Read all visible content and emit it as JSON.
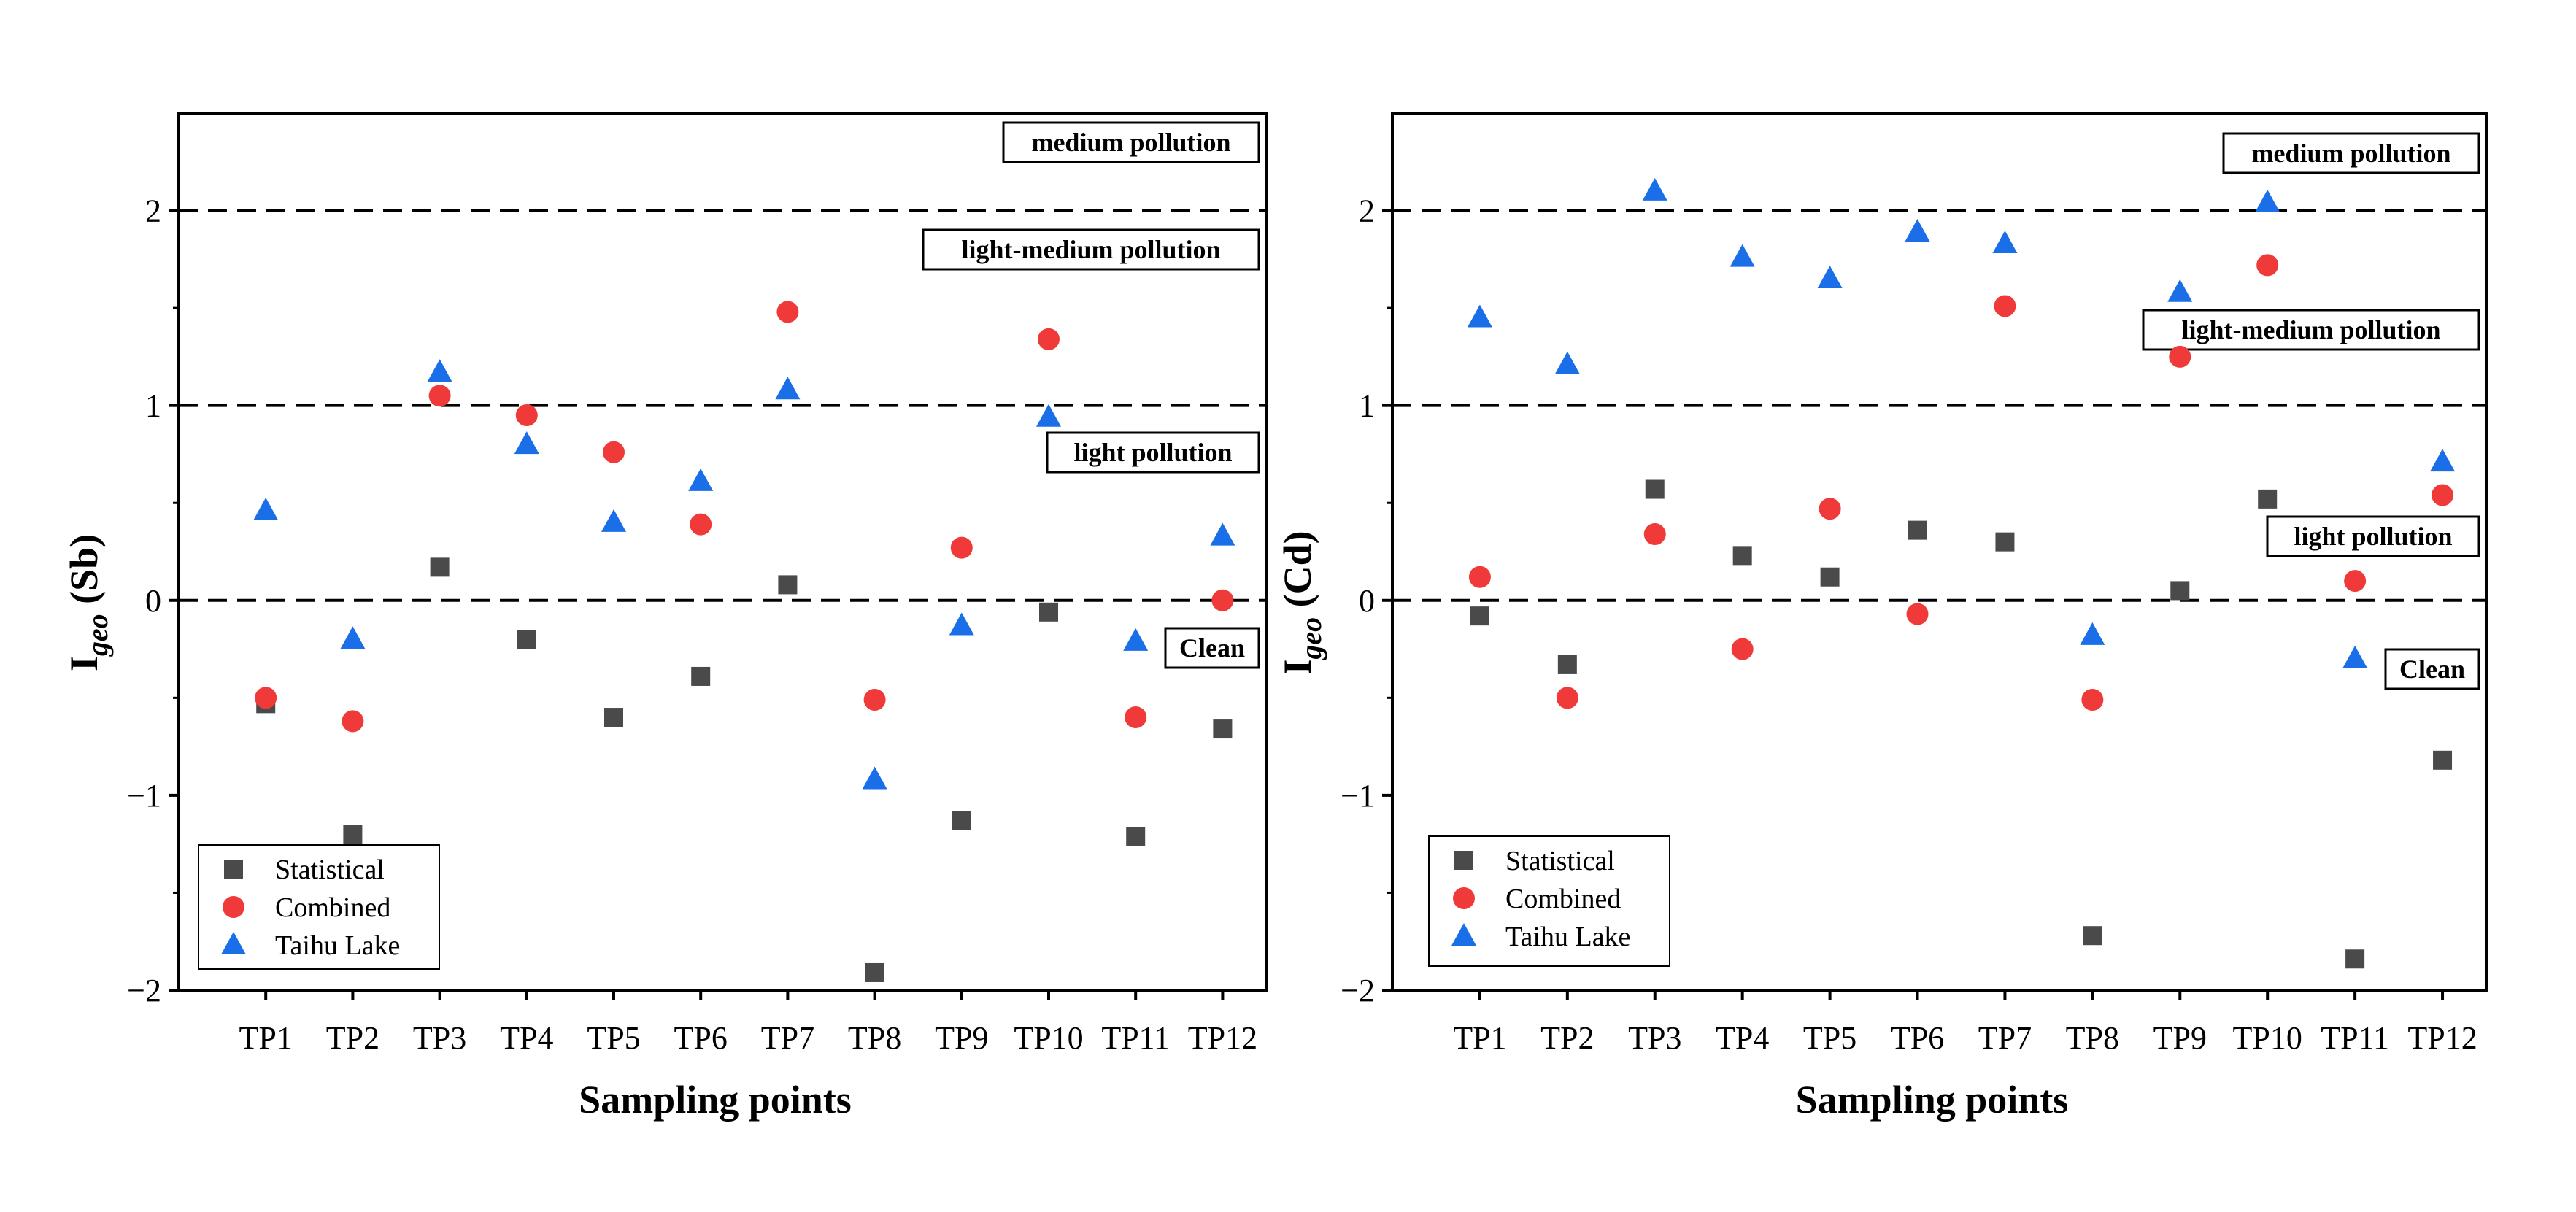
{
  "colors": {
    "statistical": "#4a4a4a",
    "combined": "#f03a3a",
    "taihu": "#1a6fe8"
  },
  "chart_data": [
    {
      "type": "scatter",
      "element": "Sb",
      "ylabel_main": "I",
      "ylabel_sub": "geo",
      "ylabel_suffix": " (Sb)",
      "xlabel": "Sampling points",
      "categories": [
        "TP1",
        "TP2",
        "TP3",
        "TP4",
        "TP5",
        "TP6",
        "TP7",
        "TP8",
        "TP9",
        "TP10",
        "TP11",
        "TP12"
      ],
      "ylim": [
        -2,
        2.5
      ],
      "yticks": [
        -2,
        -1,
        0,
        1,
        2
      ],
      "ytick_labels": [
        "−2",
        "−1",
        "0",
        "1",
        "2"
      ],
      "thresholds": [
        0,
        1,
        2
      ],
      "zones": [
        "medium pollution",
        "light-medium pollution",
        "light pollution",
        "Clean"
      ],
      "legend": [
        "Statistical",
        "Combined",
        "Taihu Lake"
      ],
      "series": [
        {
          "name": "Statistical",
          "marker": "square",
          "values": [
            -0.53,
            -1.2,
            0.17,
            -0.2,
            -0.6,
            -0.39,
            0.08,
            -1.91,
            -1.13,
            -0.06,
            -1.21,
            -0.66
          ]
        },
        {
          "name": "Combined",
          "marker": "circle",
          "values": [
            -0.5,
            -0.62,
            1.05,
            0.95,
            0.76,
            0.39,
            1.48,
            -0.51,
            0.27,
            1.34,
            -0.6,
            0.0
          ]
        },
        {
          "name": "Taihu Lake",
          "marker": "triangle",
          "values": [
            0.46,
            -0.2,
            1.17,
            0.8,
            0.4,
            0.61,
            1.08,
            -0.92,
            -0.13,
            0.94,
            -0.21,
            0.33
          ]
        }
      ]
    },
    {
      "type": "scatter",
      "element": "Cd",
      "ylabel_main": "I",
      "ylabel_sub": "geo",
      "ylabel_suffix": " (Cd)",
      "xlabel": "Sampling points",
      "categories": [
        "TP1",
        "TP2",
        "TP3",
        "TP4",
        "TP5",
        "TP6",
        "TP7",
        "TP8",
        "TP9",
        "TP10",
        "TP11",
        "TP12"
      ],
      "ylim": [
        -2,
        2.5
      ],
      "yticks": [
        -2,
        -1,
        0,
        1,
        2
      ],
      "ytick_labels": [
        "−2",
        "−1",
        "0",
        "1",
        "2"
      ],
      "thresholds": [
        0,
        1,
        2
      ],
      "zones": [
        "medium pollution",
        "light-medium pollution",
        "light pollution",
        "Clean"
      ],
      "legend": [
        "Statistical",
        "Combined",
        "Taihu Lake"
      ],
      "series": [
        {
          "name": "Statistical",
          "marker": "square",
          "values": [
            -0.08,
            -0.33,
            0.57,
            0.23,
            0.12,
            0.36,
            0.3,
            -1.72,
            0.05,
            0.52,
            -1.84,
            -0.82
          ]
        },
        {
          "name": "Combined",
          "marker": "circle",
          "values": [
            0.12,
            -0.5,
            0.34,
            -0.25,
            0.47,
            -0.07,
            1.51,
            -0.51,
            1.25,
            1.72,
            0.1,
            0.54
          ]
        },
        {
          "name": "Taihu Lake",
          "marker": "triangle",
          "values": [
            1.45,
            1.21,
            2.1,
            1.76,
            1.65,
            1.89,
            1.83,
            -0.18,
            1.58,
            2.04,
            -0.3,
            0.71
          ]
        }
      ]
    }
  ]
}
